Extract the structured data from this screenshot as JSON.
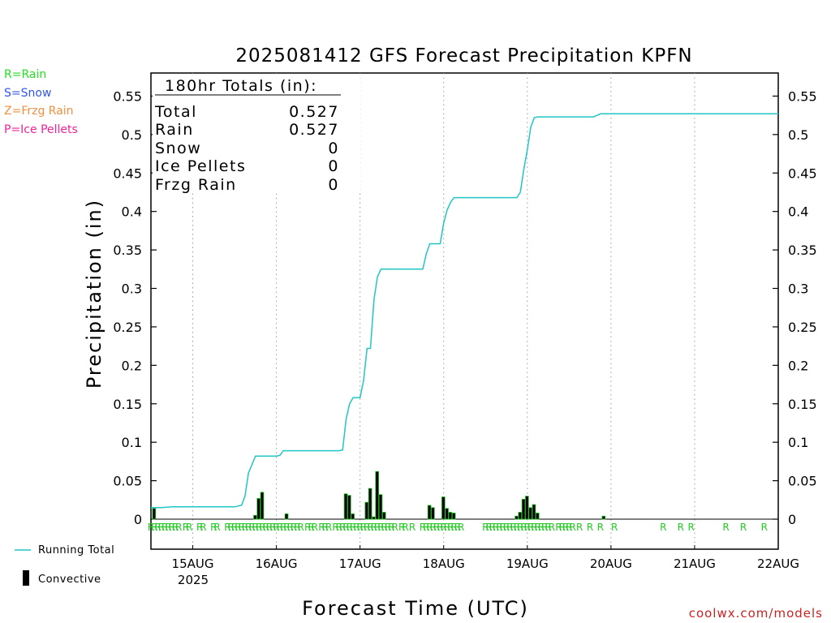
{
  "chart_data": {
    "type": "bar",
    "title": "2025081412 GFS Forecast Precipitation KPFN",
    "ylabel": "Precipitation (in)",
    "xlabel": "Forecast Time (UTC)",
    "ylim": [
      0,
      0.58
    ],
    "yticks": [
      0,
      0.05,
      0.1,
      0.15,
      0.2,
      0.25,
      0.3,
      0.35,
      0.4,
      0.45,
      0.5,
      0.55
    ],
    "ytick_labels": [
      "0",
      "0.05",
      "0.1",
      "0.15",
      "0.2",
      "0.25",
      "0.3",
      "0.35",
      "0.4",
      "0.45",
      "0.5",
      "0.55"
    ],
    "x_range_hours": [
      0,
      180
    ],
    "xtick_hours": [
      12,
      36,
      60,
      84,
      108,
      132,
      156,
      180
    ],
    "xtick_labels": [
      "15AUG",
      "16AUG",
      "17AUG",
      "18AUG",
      "19AUG",
      "20AUG",
      "21AUG",
      "22AUG"
    ],
    "x_year_label": "2025",
    "totals_box": {
      "header": "180hr Totals (in):",
      "rows": [
        {
          "label": "Total",
          "value": "0.527"
        },
        {
          "label": "Rain",
          "value": "0.527"
        },
        {
          "label": "Snow",
          "value": "0"
        },
        {
          "label": "Ice Pellets",
          "value": "0"
        },
        {
          "label": "Frzg Rain",
          "value": "0"
        }
      ]
    },
    "ptype_legend": [
      {
        "text": "R=Rain",
        "color": "#22dd22"
      },
      {
        "text": "S=Snow",
        "color": "#3355ee"
      },
      {
        "text": "Z=Frzg Rain",
        "color": "#f09040"
      },
      {
        "text": "P=Ice Pellets",
        "color": "#ee2299"
      }
    ],
    "series": [
      {
        "name": "Running Total",
        "color": "#22c5c5",
        "x": [
          0,
          3,
          6,
          9,
          12,
          15,
          18,
          21,
          24,
          26,
          27,
          28,
          30,
          33,
          36,
          37,
          38,
          41,
          44,
          47,
          51,
          54,
          55,
          56,
          57,
          58,
          60,
          61,
          62,
          63,
          64,
          65,
          66,
          67,
          68,
          70,
          72,
          76,
          78,
          79,
          80,
          81,
          83,
          84,
          85,
          86,
          87,
          90,
          96,
          102,
          105,
          106,
          107,
          108,
          109,
          110,
          111,
          114,
          120,
          127,
          128,
          129,
          132,
          138,
          150,
          180
        ],
        "y": [
          0.015,
          0.015,
          0.016,
          0.016,
          0.016,
          0.016,
          0.016,
          0.016,
          0.016,
          0.018,
          0.03,
          0.06,
          0.082,
          0.082,
          0.082,
          0.083,
          0.089,
          0.089,
          0.089,
          0.089,
          0.089,
          0.089,
          0.09,
          0.13,
          0.15,
          0.158,
          0.158,
          0.18,
          0.222,
          0.222,
          0.285,
          0.315,
          0.325,
          0.325,
          0.325,
          0.325,
          0.325,
          0.325,
          0.325,
          0.345,
          0.358,
          0.358,
          0.358,
          0.385,
          0.402,
          0.412,
          0.418,
          0.418,
          0.418,
          0.418,
          0.418,
          0.425,
          0.455,
          0.48,
          0.51,
          0.522,
          0.523,
          0.523,
          0.523,
          0.523,
          0.525,
          0.527,
          0.527,
          0.527,
          0.527,
          0.527
        ]
      },
      {
        "name": "Convective",
        "color": "#000000",
        "bars": [
          {
            "x": 1,
            "v": 0.014
          },
          {
            "x": 30,
            "v": 0.005
          },
          {
            "x": 31,
            "v": 0.027
          },
          {
            "x": 32,
            "v": 0.035
          },
          {
            "x": 39,
            "v": 0.007
          },
          {
            "x": 56,
            "v": 0.033
          },
          {
            "x": 57,
            "v": 0.031
          },
          {
            "x": 58,
            "v": 0.007
          },
          {
            "x": 62,
            "v": 0.022
          },
          {
            "x": 63,
            "v": 0.04
          },
          {
            "x": 64,
            "v": 0.003
          },
          {
            "x": 65,
            "v": 0.062
          },
          {
            "x": 66,
            "v": 0.032
          },
          {
            "x": 67,
            "v": 0.009
          },
          {
            "x": 80,
            "v": 0.018
          },
          {
            "x": 81,
            "v": 0.015
          },
          {
            "x": 84,
            "v": 0.029
          },
          {
            "x": 85,
            "v": 0.014
          },
          {
            "x": 86,
            "v": 0.009
          },
          {
            "x": 87,
            "v": 0.008
          },
          {
            "x": 105,
            "v": 0.004
          },
          {
            "x": 106,
            "v": 0.009
          },
          {
            "x": 107,
            "v": 0.026
          },
          {
            "x": 108,
            "v": 0.03
          },
          {
            "x": 109,
            "v": 0.015
          },
          {
            "x": 110,
            "v": 0.019
          },
          {
            "x": 111,
            "v": 0.008
          },
          {
            "x": 130,
            "v": 0.004
          }
        ]
      }
    ],
    "rain_marker_hours": [
      0,
      1,
      2,
      3,
      4,
      5,
      6,
      7,
      8,
      10,
      11,
      14,
      15,
      18,
      19,
      22,
      23,
      24,
      25,
      26,
      27,
      28,
      29,
      30,
      31,
      32,
      33,
      34,
      35,
      36,
      37,
      38,
      39,
      40,
      41,
      42,
      43,
      45,
      46,
      47,
      49,
      50,
      51,
      53,
      54,
      55,
      56,
      57,
      58,
      59,
      60,
      61,
      62,
      63,
      64,
      65,
      66,
      67,
      68,
      69,
      70,
      72,
      73,
      75,
      78,
      79,
      80,
      81,
      82,
      83,
      84,
      85,
      86,
      87,
      88,
      89,
      96,
      97,
      98,
      99,
      100,
      101,
      102,
      103,
      104,
      105,
      106,
      107,
      108,
      109,
      110,
      111,
      112,
      113,
      114,
      115,
      117,
      118,
      119,
      120,
      121,
      123,
      126,
      129,
      133,
      147,
      152,
      155,
      165,
      170,
      176
    ],
    "rain_marker_letter": "R",
    "legend": [
      {
        "name": "Running Total",
        "kind": "line"
      },
      {
        "name": "Convective",
        "kind": "bar"
      }
    ],
    "credit": "coolwx.com/models"
  }
}
